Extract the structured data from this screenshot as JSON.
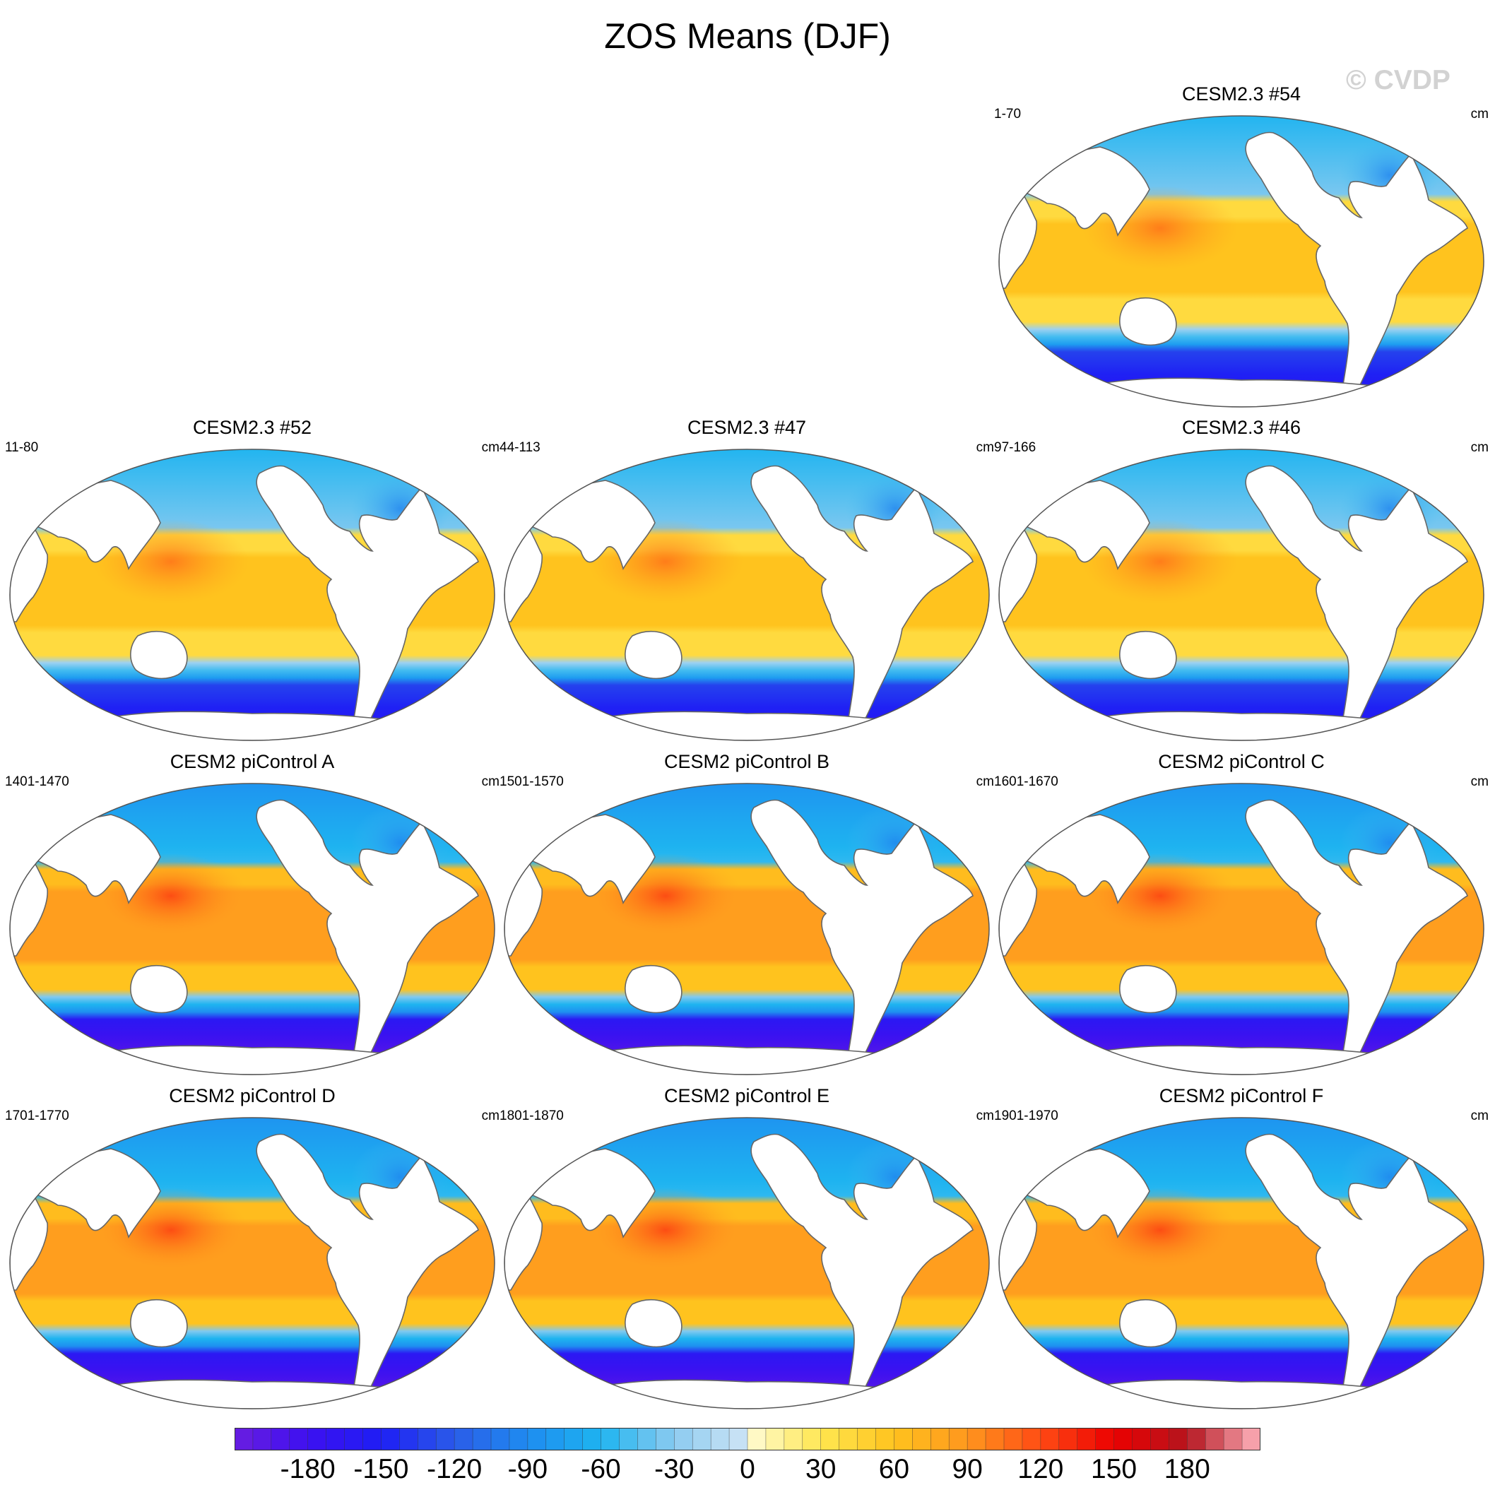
{
  "title": "ZOS Means (DJF)",
  "watermark": "© CVDP",
  "variable": "ZOS",
  "season": "DJF",
  "units": "cm",
  "projection": "Robinson (Pacific-centered)",
  "panels": [
    {
      "title": "CESM2.3 #54",
      "years": "1-70",
      "units": "cm",
      "style": "cesm23"
    },
    {
      "title": "CESM2.3 #52",
      "years": "11-80",
      "units": "cm",
      "style": "cesm23"
    },
    {
      "title": "CESM2.3 #47",
      "years": "44-113",
      "units": "cm",
      "style": "cesm23"
    },
    {
      "title": "CESM2.3 #46",
      "years": "97-166",
      "units": "cm",
      "style": "cesm23"
    },
    {
      "title": "CESM2 piControl A",
      "years": "1401-1470",
      "units": "cm",
      "style": "picontrol"
    },
    {
      "title": "CESM2 piControl B",
      "years": "1501-1570",
      "units": "cm",
      "style": "picontrol"
    },
    {
      "title": "CESM2 piControl C",
      "years": "1601-1670",
      "units": "cm",
      "style": "picontrol"
    },
    {
      "title": "CESM2 piControl D",
      "years": "1701-1770",
      "units": "cm",
      "style": "picontrol"
    },
    {
      "title": "CESM2 piControl E",
      "years": "1801-1870",
      "units": "cm",
      "style": "picontrol"
    },
    {
      "title": "CESM2 piControl F",
      "years": "1901-1970",
      "units": "cm",
      "style": "picontrol"
    }
  ],
  "colorbar": {
    "min": -210,
    "max": 210,
    "step": 7.5,
    "tick_labels": [
      "-180",
      "-150",
      "-120",
      "-90",
      "-60",
      "-30",
      "0",
      "30",
      "60",
      "90",
      "120",
      "150",
      "180"
    ],
    "tick_values": [
      -180,
      -150,
      -120,
      -90,
      -60,
      -30,
      0,
      30,
      60,
      90,
      120,
      150,
      180
    ],
    "color_stops": [
      {
        "value": -210,
        "color": "#6a1ee0"
      },
      {
        "value": -180,
        "color": "#3d10f0"
      },
      {
        "value": -150,
        "color": "#1e1ef5"
      },
      {
        "value": -120,
        "color": "#2a5ce8"
      },
      {
        "value": -90,
        "color": "#1e8cf0"
      },
      {
        "value": -60,
        "color": "#1eb4f0"
      },
      {
        "value": -30,
        "color": "#8ccbf0"
      },
      {
        "value": -3,
        "color": "#c8e2f5"
      },
      {
        "value": 3,
        "color": "#fffac8"
      },
      {
        "value": 30,
        "color": "#ffe650"
      },
      {
        "value": 60,
        "color": "#ffc31e"
      },
      {
        "value": 90,
        "color": "#ff961e"
      },
      {
        "value": 120,
        "color": "#ff4b14"
      },
      {
        "value": 150,
        "color": "#eb0000"
      },
      {
        "value": 180,
        "color": "#b4141e"
      },
      {
        "value": 210,
        "color": "#ffb4be"
      }
    ]
  },
  "colors": {
    "land": "#ffffff",
    "coastline": "#666666",
    "map_border": "#555555"
  }
}
